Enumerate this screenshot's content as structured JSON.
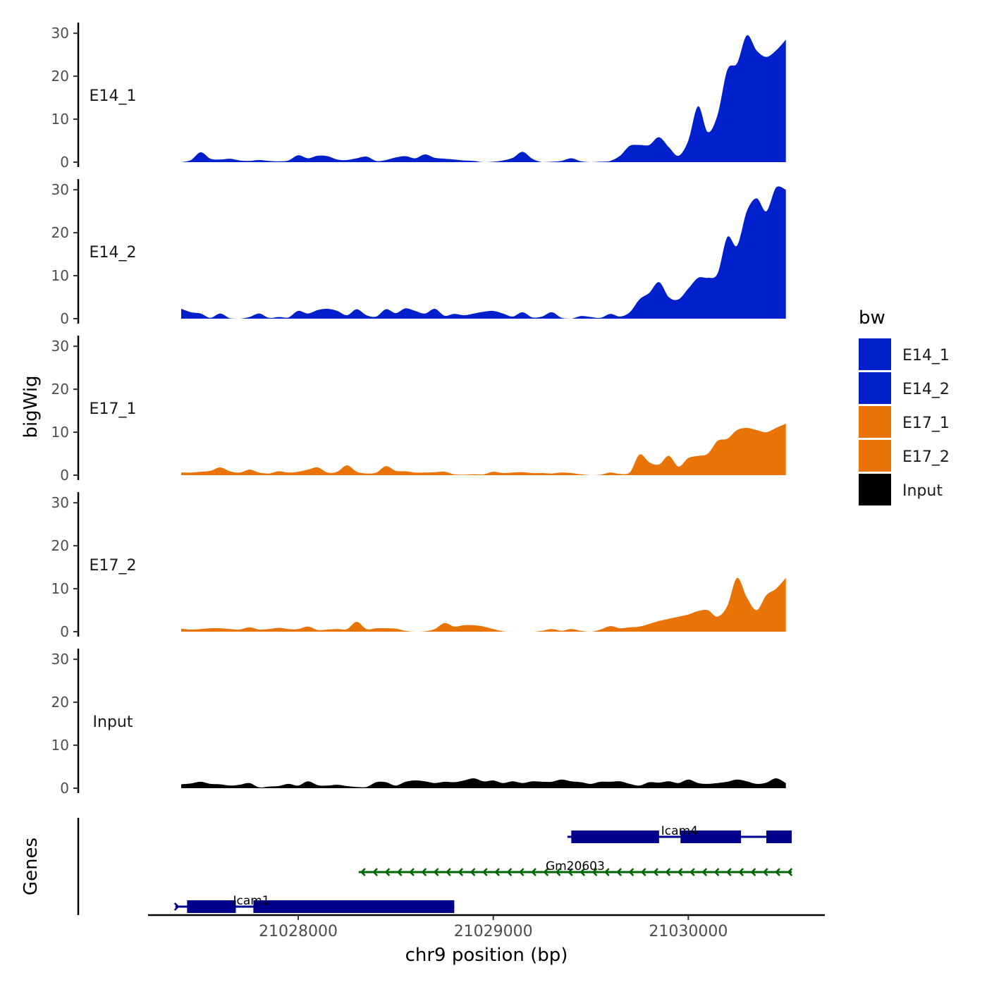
{
  "chart_data": {
    "type": "area",
    "title": "",
    "xlabel": "chr9 position (bp)",
    "ylabel": "bigWig",
    "genes_label": "Genes",
    "xlim": [
      21027230,
      21030700
    ],
    "ylim": [
      0,
      32
    ],
    "x_ticks": [
      21028000,
      21029000,
      21030000
    ],
    "x_tick_labels": [
      "21028000",
      "21029000",
      "21030000"
    ],
    "y_ticks": [
      0,
      10,
      20,
      30
    ],
    "y_tick_labels": [
      "0",
      "10",
      "20",
      "30"
    ],
    "legend": {
      "title": "bw",
      "position": "right"
    },
    "colors": {
      "E14_1": "#0020CC",
      "E14_2": "#0020CC",
      "E17_1": "#E87306",
      "E17_2": "#E87306",
      "Input": "#000000",
      "gene_coding": "#00008B",
      "gene_noncoding": "#006400"
    },
    "series": [
      {
        "name": "E14_1",
        "x": [
          21027400,
          21027450,
          21027500,
          21027550,
          21027600,
          21027650,
          21027700,
          21027750,
          21027800,
          21027850,
          21027900,
          21027950,
          21028000,
          21028050,
          21028100,
          21028150,
          21028200,
          21028250,
          21028300,
          21028350,
          21028400,
          21028450,
          21028500,
          21028550,
          21028600,
          21028650,
          21028700,
          21028750,
          21028800,
          21028850,
          21028900,
          21028950,
          21029000,
          21029050,
          21029100,
          21029150,
          21029200,
          21029250,
          21029300,
          21029350,
          21029400,
          21029450,
          21029500,
          21029550,
          21029600,
          21029650,
          21029700,
          21029750,
          21029800,
          21029850,
          21029900,
          21029950,
          21030000,
          21030050,
          21030100,
          21030150,
          21030200,
          21030250,
          21030300,
          21030350,
          21030400,
          21030450,
          21030500
        ],
        "values": [
          0,
          0.5,
          2.3,
          0.8,
          0.6,
          0.8,
          0.4,
          0.3,
          0.5,
          0.3,
          0.2,
          0.4,
          1.6,
          0.9,
          1.5,
          1.4,
          0.6,
          0.5,
          0.9,
          1.3,
          0.3,
          0.5,
          1.1,
          1.4,
          0.9,
          1.8,
          1.0,
          0.8,
          0.6,
          0.4,
          0.3,
          0,
          0.1,
          0.4,
          1.0,
          2.4,
          0.8,
          0,
          0.1,
          0.3,
          0.9,
          0.2,
          0,
          0.1,
          0.3,
          1.5,
          3.8,
          4.0,
          4.0,
          5.8,
          3.5,
          1.5,
          5.0,
          13.0,
          7.0,
          11.0,
          21.5,
          23.0,
          29.5,
          26.0,
          24.5,
          26.0,
          28.5
        ]
      },
      {
        "name": "E14_2",
        "x": [
          21027400,
          21027450,
          21027500,
          21027550,
          21027600,
          21027650,
          21027700,
          21027750,
          21027800,
          21027850,
          21027900,
          21027950,
          21028000,
          21028050,
          21028100,
          21028150,
          21028200,
          21028250,
          21028300,
          21028350,
          21028400,
          21028450,
          21028500,
          21028550,
          21028600,
          21028650,
          21028700,
          21028750,
          21028800,
          21028850,
          21028900,
          21028950,
          21029000,
          21029050,
          21029100,
          21029150,
          21029200,
          21029250,
          21029300,
          21029350,
          21029400,
          21029450,
          21029500,
          21029550,
          21029600,
          21029650,
          21029700,
          21029750,
          21029800,
          21029850,
          21029900,
          21029950,
          21030000,
          21030050,
          21030100,
          21030150,
          21030200,
          21030250,
          21030300,
          21030350,
          21030400,
          21030450,
          21030500
        ],
        "values": [
          2.3,
          1.5,
          1.2,
          0.2,
          1.2,
          0.1,
          0,
          0.4,
          1.2,
          0.2,
          0.4,
          0.3,
          1.8,
          1.2,
          2.0,
          2.3,
          1.8,
          0.8,
          2.2,
          0.8,
          0.5,
          2.2,
          1.3,
          2.4,
          1.8,
          1.2,
          2.3,
          0.7,
          1.1,
          0.8,
          1.2,
          1.6,
          1.8,
          1.2,
          0.5,
          1.5,
          0.3,
          0.5,
          1.5,
          0.2,
          0,
          0.6,
          0.4,
          0.2,
          1.1,
          0.5,
          1.5,
          4.5,
          6.0,
          8.5,
          5.0,
          4.5,
          7.0,
          9.5,
          9.5,
          10.5,
          19.0,
          17.0,
          25.0,
          28.0,
          25.0,
          30.5,
          30.0
        ]
      },
      {
        "name": "E17_1",
        "x": [
          21027400,
          21027450,
          21027500,
          21027550,
          21027600,
          21027650,
          21027700,
          21027750,
          21027800,
          21027850,
          21027900,
          21027950,
          21028000,
          21028050,
          21028100,
          21028150,
          21028200,
          21028250,
          21028300,
          21028350,
          21028400,
          21028450,
          21028500,
          21028550,
          21028600,
          21028650,
          21028700,
          21028750,
          21028800,
          21028850,
          21028900,
          21028950,
          21029000,
          21029050,
          21029100,
          21029150,
          21029200,
          21029250,
          21029300,
          21029350,
          21029400,
          21029450,
          21029500,
          21029550,
          21029600,
          21029650,
          21029700,
          21029750,
          21029800,
          21029850,
          21029900,
          21029950,
          21030000,
          21030050,
          21030100,
          21030150,
          21030200,
          21030250,
          21030300,
          21030350,
          21030400,
          21030450,
          21030500
        ],
        "values": [
          0.6,
          0.6,
          0.8,
          1.0,
          1.8,
          0.9,
          0.6,
          1.3,
          0.6,
          0.4,
          0.9,
          0.6,
          0.8,
          1.3,
          1.8,
          0.6,
          0.8,
          2.3,
          0.8,
          0.4,
          0.6,
          2.1,
          1.0,
          0.9,
          0.6,
          0.6,
          0.7,
          0.8,
          0.2,
          0.1,
          0.2,
          0.2,
          0.8,
          0.5,
          0.6,
          0.7,
          0.5,
          0.5,
          0.4,
          0.6,
          0.5,
          0.2,
          0,
          0.1,
          0.6,
          0.3,
          0.6,
          4.8,
          3.0,
          2.5,
          4.5,
          2.0,
          4.0,
          4.5,
          5.0,
          8.0,
          8.5,
          10.5,
          11.0,
          10.5,
          10.0,
          11.0,
          12.0
        ]
      },
      {
        "name": "E17_2",
        "x": [
          21027400,
          21027450,
          21027500,
          21027550,
          21027600,
          21027650,
          21027700,
          21027750,
          21027800,
          21027850,
          21027900,
          21027950,
          21028000,
          21028050,
          21028100,
          21028150,
          21028200,
          21028250,
          21028300,
          21028350,
          21028400,
          21028450,
          21028500,
          21028550,
          21028600,
          21028650,
          21028700,
          21028750,
          21028800,
          21028850,
          21028900,
          21028950,
          21029000,
          21029050,
          21029100,
          21029150,
          21029200,
          21029250,
          21029300,
          21029350,
          21029400,
          21029450,
          21029500,
          21029550,
          21029600,
          21029650,
          21029700,
          21029750,
          21029800,
          21029850,
          21029900,
          21029950,
          21030000,
          21030050,
          21030100,
          21030150,
          21030200,
          21030250,
          21030300,
          21030350,
          21030400,
          21030450,
          21030500
        ],
        "values": [
          0.7,
          0.5,
          0.6,
          0.8,
          0.8,
          0.6,
          0.5,
          1.0,
          0.5,
          0.6,
          0.9,
          0.6,
          0.6,
          1.2,
          0.4,
          0.5,
          0.6,
          0.6,
          2.3,
          0.6,
          0.8,
          0.8,
          0.7,
          0.2,
          0,
          0.1,
          0.6,
          2.0,
          1.2,
          1.5,
          1.5,
          1.2,
          0.6,
          0.1,
          0,
          0,
          0,
          0.2,
          0.6,
          0.2,
          0.6,
          0.2,
          0,
          0.5,
          1.3,
          0.8,
          1.0,
          1.2,
          1.8,
          2.5,
          3.0,
          3.5,
          4.0,
          4.8,
          5.0,
          3.5,
          6.0,
          12.5,
          8.0,
          5.0,
          8.5,
          10.0,
          12.5
        ]
      },
      {
        "name": "Input",
        "x": [
          21027400,
          21027450,
          21027500,
          21027550,
          21027600,
          21027650,
          21027700,
          21027750,
          21027800,
          21027850,
          21027900,
          21027950,
          21028000,
          21028050,
          21028100,
          21028150,
          21028200,
          21028250,
          21028300,
          21028350,
          21028400,
          21028450,
          21028500,
          21028550,
          21028600,
          21028650,
          21028700,
          21028750,
          21028800,
          21028850,
          21028900,
          21028950,
          21029000,
          21029050,
          21029100,
          21029150,
          21029200,
          21029250,
          21029300,
          21029350,
          21029400,
          21029450,
          21029500,
          21029550,
          21029600,
          21029650,
          21029700,
          21029750,
          21029800,
          21029850,
          21029900,
          21029950,
          21030000,
          21030050,
          21030100,
          21030150,
          21030200,
          21030250,
          21030300,
          21030350,
          21030400,
          21030450,
          21030500
        ],
        "values": [
          0.9,
          1.1,
          1.5,
          1.0,
          0.9,
          0.6,
          0.8,
          1.2,
          0.2,
          0.4,
          0.5,
          1.0,
          0.6,
          1.6,
          0.7,
          0.6,
          0.8,
          0.5,
          0.3,
          0.3,
          1.4,
          1.4,
          0.6,
          1.5,
          1.8,
          1.6,
          1.2,
          1.5,
          1.4,
          1.8,
          2.3,
          1.6,
          1.8,
          1.2,
          1.6,
          1.2,
          1.6,
          1.5,
          1.5,
          2.0,
          1.6,
          1.4,
          1.0,
          1.5,
          1.5,
          1.6,
          1.0,
          0.6,
          1.4,
          1.3,
          1.6,
          1.2,
          2.0,
          1.2,
          1.0,
          1.2,
          1.5,
          2.0,
          1.6,
          1.0,
          1.3,
          2.3,
          1.2
        ]
      }
    ],
    "genes": [
      {
        "name": "Icam4",
        "row": 1,
        "strand": "+",
        "color": "gene_coding",
        "start": 21029380,
        "end": 21030530,
        "exons": [
          [
            21029400,
            21029850
          ],
          [
            21029960,
            21030270
          ],
          [
            21030400,
            21030530
          ]
        ]
      },
      {
        "name": "Gm20603",
        "row": 2,
        "strand": "-",
        "color": "gene_noncoding",
        "start": 21028310,
        "end": 21030530,
        "exons": []
      },
      {
        "name": "Icam1",
        "row": 3,
        "strand": "+",
        "color": "gene_coding",
        "start": 21027370,
        "end": 21028800,
        "exons": [
          [
            21027430,
            21027680
          ],
          [
            21027770,
            21028800
          ]
        ]
      }
    ]
  }
}
